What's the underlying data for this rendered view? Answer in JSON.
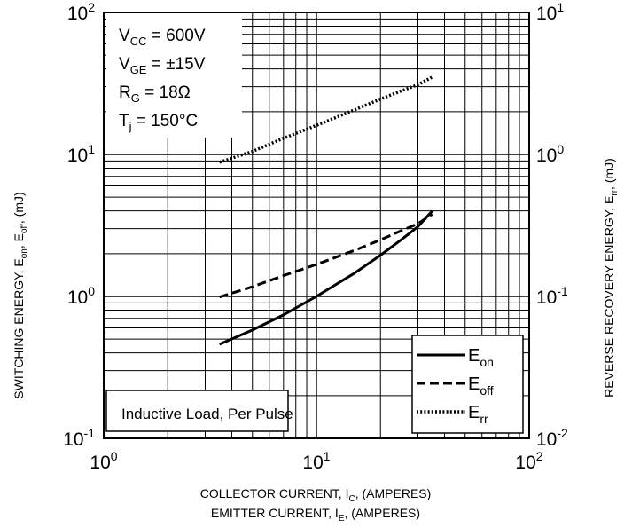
{
  "chart_data": {
    "type": "line",
    "scale": {
      "x": "log",
      "y_left": "log",
      "y_right": "log"
    },
    "grid": true,
    "xlim": [
      1,
      100
    ],
    "ylim_left": [
      0.1,
      100
    ],
    "ylim_right": [
      0.01,
      10
    ],
    "x_ticks": [
      {
        "base": "10",
        "exp": "0"
      },
      {
        "base": "10",
        "exp": "1"
      },
      {
        "base": "10",
        "exp": "2"
      }
    ],
    "y_left_ticks": [
      {
        "base": "10",
        "exp": "-1"
      },
      {
        "base": "10",
        "exp": "0"
      },
      {
        "base": "10",
        "exp": "1"
      },
      {
        "base": "10",
        "exp": "2"
      }
    ],
    "y_right_ticks": [
      {
        "base": "10",
        "exp": "-2"
      },
      {
        "base": "10",
        "exp": "-1"
      },
      {
        "base": "10",
        "exp": "0"
      },
      {
        "base": "10",
        "exp": "1"
      }
    ],
    "xlabel_line1": {
      "pre": "COLLECTOR CURRENT, I",
      "sub": "C",
      "post": ", (AMPERES)"
    },
    "xlabel_line2": {
      "pre": "EMITTER CURRENT, I",
      "sub": "E",
      "post": ", (AMPERES)"
    },
    "ylabel_left": {
      "p1": "SWITCHING ENERGY, E",
      "s1": "on",
      "p2": ", E",
      "s2": "off",
      "p3": ", (mJ)"
    },
    "ylabel_right": {
      "p1": "REVERSE RECOVERY ENERGY, E",
      "s1": "rr",
      "p2": ", (mJ)"
    },
    "conditions": [
      {
        "pre": "V",
        "sub": "CC",
        "post": " = 600V"
      },
      {
        "pre": "V",
        "sub": "GE",
        "post": " = ±15V"
      },
      {
        "pre": "R",
        "sub": "G",
        "post": " = 18Ω"
      },
      {
        "pre": "T",
        "sub": "j",
        "post": " = 150°C"
      }
    ],
    "annotation": "Inductive Load, Per Pulse",
    "legend_position": "bottom-right",
    "series": [
      {
        "name": {
          "base": "E",
          "sub": "on"
        },
        "axis": "left",
        "style": "solid",
        "x": [
          3.5,
          5,
          7,
          10,
          15,
          20,
          25,
          30,
          35
        ],
        "y": [
          0.46,
          0.58,
          0.74,
          1.0,
          1.45,
          1.95,
          2.5,
          3.1,
          4.0
        ]
      },
      {
        "name": {
          "base": "E",
          "sub": "off"
        },
        "axis": "left",
        "style": "dashed",
        "x": [
          3.5,
          5,
          7,
          10,
          15,
          20,
          25,
          30,
          35
        ],
        "y": [
          0.99,
          1.17,
          1.4,
          1.68,
          2.1,
          2.5,
          2.9,
          3.25,
          3.8
        ]
      },
      {
        "name": {
          "base": "E",
          "sub": "rr"
        },
        "axis": "right",
        "style": "dotted",
        "x": [
          3.5,
          5,
          7,
          10,
          15,
          20,
          25,
          30,
          35
        ],
        "y": [
          0.88,
          1.05,
          1.3,
          1.6,
          2.05,
          2.45,
          2.8,
          3.1,
          3.5
        ]
      }
    ]
  }
}
